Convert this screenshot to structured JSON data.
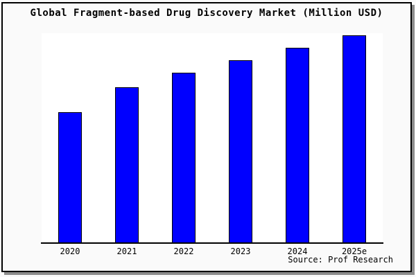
{
  "chart": {
    "title": "Global Fragment-based Drug Discovery Market (Million USD)",
    "source": "Source: Prof Research"
  },
  "colors": {
    "bar_fill": "#0000ff",
    "bar_border": "#000000",
    "frame_bg": "#fafafa",
    "frame_border": "#000000",
    "plot_bg": "#ffffff",
    "axis": "#000000",
    "shadow": "#8c8c8c",
    "text": "#000000"
  },
  "chart_data": {
    "type": "bar",
    "title": "Global Fragment-based Drug Discovery Market (Million USD)",
    "categories": [
      "2020",
      "2021",
      "2022",
      "2023",
      "2024",
      "2025e"
    ],
    "values": [
      63,
      75,
      82,
      88,
      94,
      100
    ],
    "value_note": "No y-axis or data labels shown; values are relative bar heights indexed to 2025e = 100",
    "xlabel": "",
    "ylabel": "",
    "ylim": [
      0,
      101
    ],
    "grid": false,
    "legend": false,
    "source": "Source: Prof Research"
  }
}
